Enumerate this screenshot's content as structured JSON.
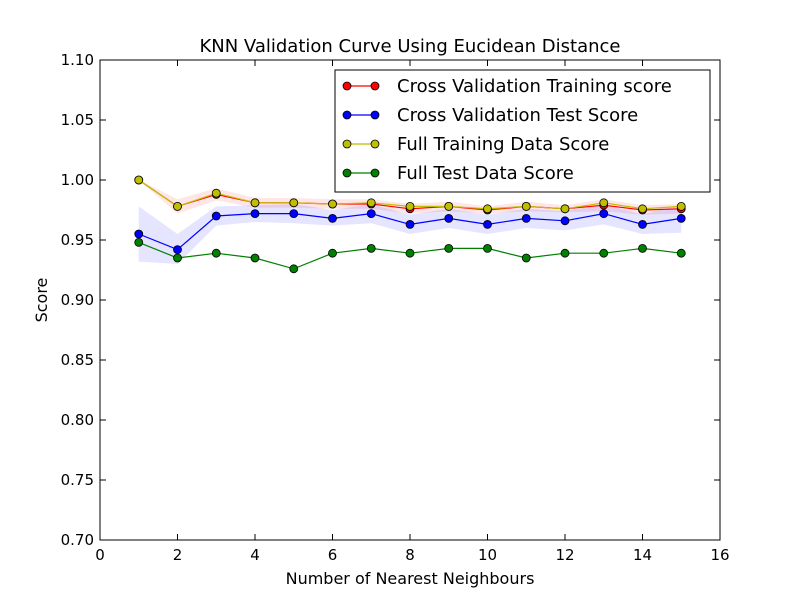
{
  "chart_data": {
    "type": "line",
    "title": "KNN Validation Curve Using Eucidean Distance",
    "xlabel": "Number of Nearest Neighbours",
    "ylabel": "Score",
    "xlim": [
      0,
      16
    ],
    "ylim": [
      0.7,
      1.1
    ],
    "x_ticks": [
      "0",
      "2",
      "4",
      "6",
      "8",
      "10",
      "12",
      "14",
      "16"
    ],
    "y_ticks": [
      "0.70",
      "0.75",
      "0.80",
      "0.85",
      "0.90",
      "0.95",
      "1.00",
      "1.05",
      "1.10"
    ],
    "grid": false,
    "legend_position": "top-right",
    "x": [
      1,
      2,
      3,
      4,
      5,
      6,
      7,
      8,
      9,
      10,
      11,
      12,
      13,
      14,
      15
    ],
    "series": [
      {
        "name": "Cross Validation Training score",
        "color": "#ff0000",
        "band_color": "#ff0000",
        "values": [
          1.0,
          0.978,
          0.988,
          0.981,
          0.981,
          0.98,
          0.98,
          0.976,
          0.978,
          0.975,
          0.978,
          0.976,
          0.979,
          0.975,
          0.976
        ],
        "band_lower": [
          1.0,
          0.972,
          0.983,
          0.977,
          0.977,
          0.976,
          0.976,
          0.972,
          0.974,
          0.972,
          0.974,
          0.973,
          0.974,
          0.971,
          0.972
        ],
        "band_upper": [
          1.0,
          0.984,
          0.993,
          0.985,
          0.985,
          0.984,
          0.984,
          0.98,
          0.982,
          0.978,
          0.982,
          0.979,
          0.984,
          0.979,
          0.98
        ]
      },
      {
        "name": "Cross Validation Test Score",
        "color": "#0000ff",
        "band_color": "#0000ff",
        "values": [
          0.955,
          0.942,
          0.97,
          0.972,
          0.972,
          0.968,
          0.972,
          0.963,
          0.968,
          0.963,
          0.968,
          0.966,
          0.972,
          0.963,
          0.968
        ],
        "band_lower": [
          0.932,
          0.93,
          0.962,
          0.965,
          0.964,
          0.962,
          0.964,
          0.955,
          0.96,
          0.955,
          0.96,
          0.958,
          0.963,
          0.955,
          0.956
        ],
        "band_upper": [
          0.978,
          0.955,
          0.978,
          0.979,
          0.98,
          0.975,
          0.98,
          0.971,
          0.976,
          0.971,
          0.976,
          0.974,
          0.98,
          0.971,
          0.98
        ]
      },
      {
        "name": "Full Training Data Score",
        "color": "#bfbf00",
        "values": [
          1.0,
          0.978,
          0.989,
          0.981,
          0.981,
          0.98,
          0.981,
          0.978,
          0.978,
          0.976,
          0.978,
          0.976,
          0.981,
          0.976,
          0.978
        ]
      },
      {
        "name": "Full Test Data Score",
        "color": "#008000",
        "values": [
          0.948,
          0.935,
          0.939,
          0.935,
          0.926,
          0.939,
          0.943,
          0.939,
          0.943,
          0.943,
          0.935,
          0.939,
          0.939,
          0.943,
          0.939
        ]
      }
    ]
  }
}
